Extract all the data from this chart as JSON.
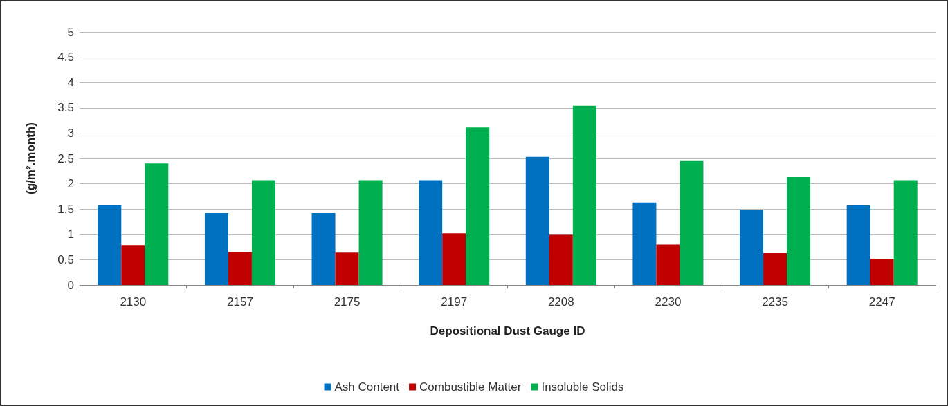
{
  "chart_data": {
    "type": "bar",
    "xlabel": "Depositional Dust Gauge ID",
    "ylabel": "(g/m².month)",
    "categories": [
      "2130",
      "2157",
      "2175",
      "2197",
      "2208",
      "2230",
      "2235",
      "2247"
    ],
    "series": [
      {
        "name": "Ash Content",
        "color": "#0070c0",
        "values": [
          1.57,
          1.42,
          1.42,
          2.07,
          2.53,
          1.63,
          1.49,
          1.57
        ]
      },
      {
        "name": "Combustible Matter",
        "color": "#c00000",
        "values": [
          0.79,
          0.65,
          0.64,
          1.02,
          0.99,
          0.8,
          0.63,
          0.52
        ]
      },
      {
        "name": "Insoluble Solids",
        "color": "#00b050",
        "values": [
          2.4,
          2.07,
          2.07,
          3.11,
          3.54,
          2.45,
          2.13,
          2.07
        ]
      }
    ],
    "ylim": [
      0,
      5
    ],
    "yticks": [
      0,
      0.5,
      1,
      1.5,
      2,
      2.5,
      3,
      3.5,
      4,
      4.5,
      5
    ],
    "grid": "y",
    "legend": "bottom"
  }
}
